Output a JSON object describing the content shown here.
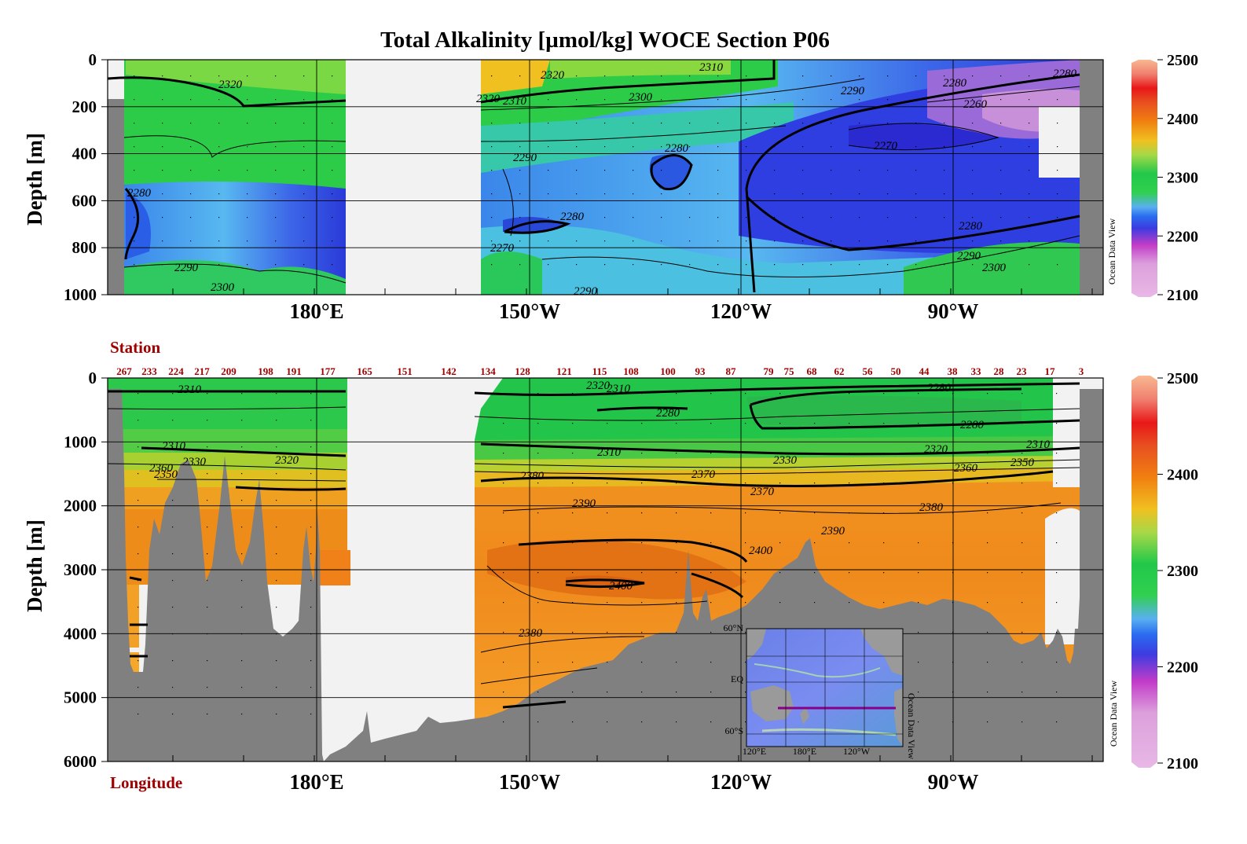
{
  "chart_data": [
    {
      "type": "heatmap",
      "title": "Total Alkalinity [µmol/kg]  WOCE Section P06",
      "ylabel": "Depth [m]",
      "ylim": [
        1000,
        0
      ],
      "yticks": [
        "0",
        "200",
        "400",
        "600",
        "800",
        "1000"
      ],
      "xticks": [
        "180°E",
        "150°W",
        "120°W",
        "90°W"
      ],
      "grid": true,
      "colorbar": {
        "min": 2100,
        "max": 2500,
        "ticks": [
          "2100",
          "2200",
          "2300",
          "2400",
          "2500"
        ]
      },
      "colorbar_note": "Ocean Data View",
      "contour_labels": [
        "2320",
        "2320",
        "2310",
        "2320",
        "2310",
        "2300",
        "2290",
        "2280",
        "2280",
        "2260",
        "2270",
        "2290",
        "2280",
        "2280",
        "2280",
        "2280",
        "2290",
        "2290",
        "2300",
        "2290",
        "2300",
        "2270"
      ]
    },
    {
      "type": "heatmap",
      "ylabel": "Depth [m]",
      "ylim": [
        6000,
        0
      ],
      "yticks": [
        "0",
        "1000",
        "2000",
        "3000",
        "4000",
        "5000",
        "6000"
      ],
      "xticks": [
        "180°E",
        "150°W",
        "120°W",
        "90°W"
      ],
      "xlabel": "Longitude",
      "station_label": "Station",
      "stations": [
        "267",
        "233",
        "224",
        "217",
        "209",
        "198",
        "191",
        "177",
        "165",
        "151",
        "142",
        "134",
        "128",
        "121",
        "115",
        "108",
        "100",
        "93",
        "87",
        "79",
        "75",
        "68",
        "62",
        "56",
        "50",
        "44",
        "38",
        "33",
        "28",
        "23",
        "17",
        "3"
      ],
      "grid": true,
      "colorbar": {
        "min": 2100,
        "max": 2500,
        "ticks": [
          "2100",
          "2200",
          "2300",
          "2400",
          "2500"
        ]
      },
      "colorbar_note": "Ocean Data View",
      "contour_labels": [
        "2310",
        "2320",
        "2310",
        "2280",
        "2280",
        "2280",
        "2310",
        "2330",
        "2320",
        "2350",
        "2310",
        "2330",
        "2320",
        "2350",
        "2310",
        "2370",
        "2360",
        "2380",
        "2390",
        "2390",
        "2380",
        "2400",
        "2400",
        "2380",
        "2370",
        "2360"
      ],
      "inset_map": {
        "lat_labels": [
          "60°N",
          "EQ",
          "60°S"
        ],
        "lon_labels": [
          "120°E",
          "180°E",
          "120°W"
        ],
        "note": "Ocean Data View"
      }
    }
  ]
}
